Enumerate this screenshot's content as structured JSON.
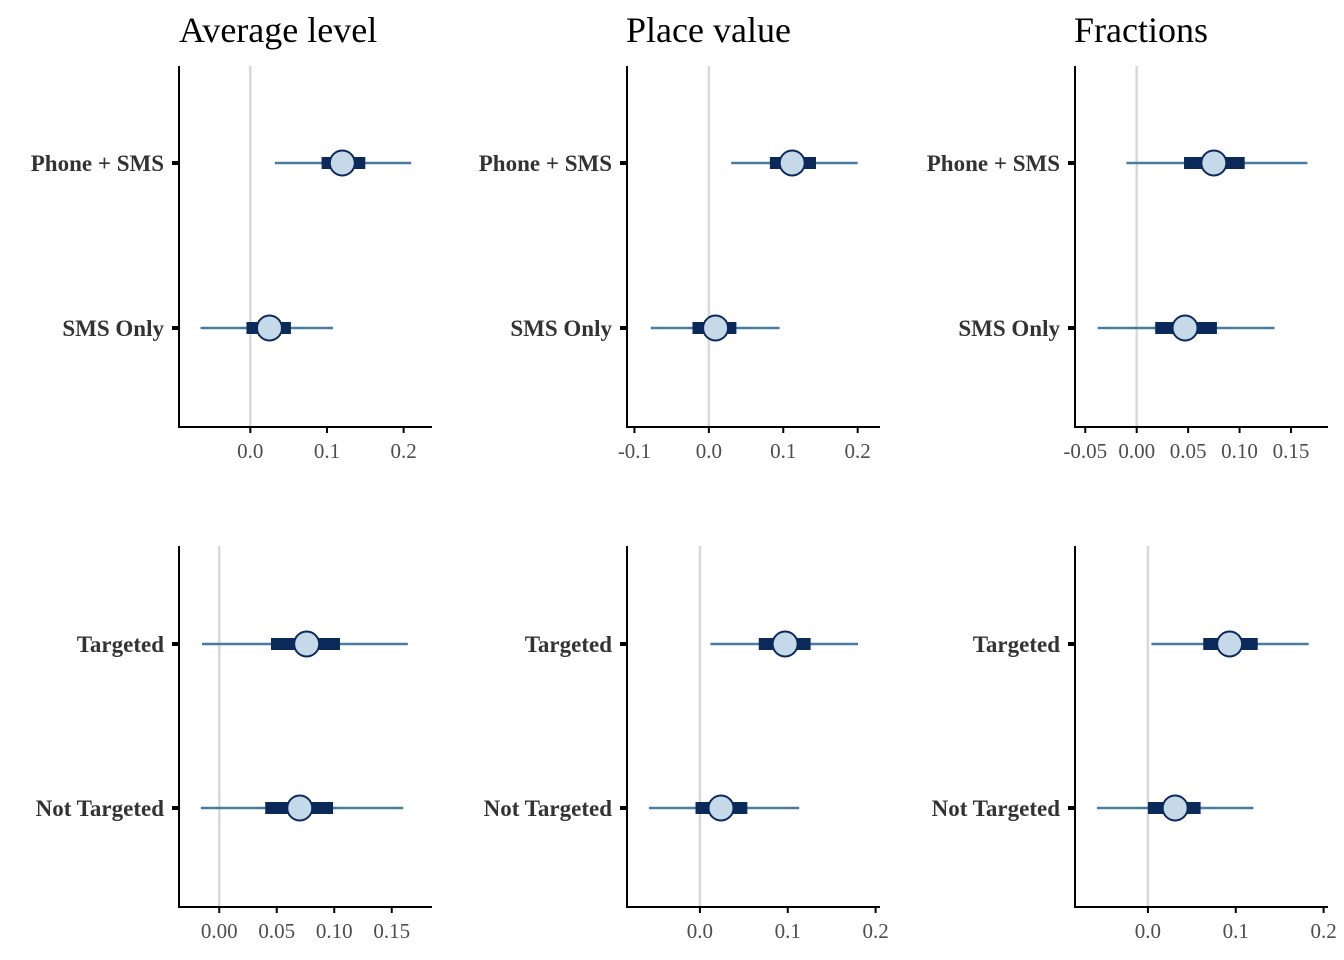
{
  "chart_data": [
    {
      "type": "coefficient_plot",
      "title": "Average level",
      "xlim": [
        -0.093,
        0.237
      ],
      "x_ticks": [
        {
          "value": 0.0,
          "label": "0.0"
        },
        {
          "value": 0.1,
          "label": "0.1"
        },
        {
          "value": 0.2,
          "label": "0.2"
        }
      ],
      "reference_line": 0,
      "categories": [
        "Phone + SMS",
        "SMS Only"
      ],
      "estimates": [
        {
          "label": "Phone + SMS",
          "estimate": 0.12,
          "ci_inner": [
            0.093,
            0.15
          ],
          "ci_outer": [
            0.032,
            0.21
          ]
        },
        {
          "label": "SMS Only",
          "estimate": 0.025,
          "ci_inner": [
            -0.005,
            0.053
          ],
          "ci_outer": [
            -0.065,
            0.108
          ]
        }
      ]
    },
    {
      "type": "coefficient_plot",
      "title": "Place value",
      "xlim": [
        -0.11,
        0.23
      ],
      "x_ticks": [
        {
          "value": -0.1,
          "label": "-0.1"
        },
        {
          "value": 0.0,
          "label": "0.0"
        },
        {
          "value": 0.1,
          "label": "0.1"
        },
        {
          "value": 0.2,
          "label": "0.2"
        }
      ],
      "reference_line": 0,
      "categories": [
        "Phone + SMS",
        "SMS Only"
      ],
      "estimates": [
        {
          "label": "Phone + SMS",
          "estimate": 0.112,
          "ci_inner": [
            0.082,
            0.144
          ],
          "ci_outer": [
            0.03,
            0.2
          ]
        },
        {
          "label": "SMS Only",
          "estimate": 0.009,
          "ci_inner": [
            -0.022,
            0.037
          ],
          "ci_outer": [
            -0.078,
            0.095
          ]
        }
      ]
    },
    {
      "type": "coefficient_plot",
      "title": "Fractions",
      "xlim": [
        -0.06,
        0.186
      ],
      "x_ticks": [
        {
          "value": -0.05,
          "label": "-0.05"
        },
        {
          "value": 0.0,
          "label": "0.00"
        },
        {
          "value": 0.05,
          "label": "0.05"
        },
        {
          "value": 0.1,
          "label": "0.10"
        },
        {
          "value": 0.15,
          "label": "0.15"
        }
      ],
      "reference_line": 0,
      "categories": [
        "Phone + SMS",
        "SMS Only"
      ],
      "estimates": [
        {
          "label": "Phone + SMS",
          "estimate": 0.075,
          "ci_inner": [
            0.046,
            0.105
          ],
          "ci_outer": [
            -0.01,
            0.166
          ]
        },
        {
          "label": "SMS Only",
          "estimate": 0.047,
          "ci_inner": [
            0.018,
            0.078
          ],
          "ci_outer": [
            -0.038,
            0.134
          ]
        }
      ]
    },
    {
      "type": "coefficient_plot",
      "title": "",
      "xlim": [
        -0.035,
        0.185
      ],
      "x_ticks": [
        {
          "value": 0.0,
          "label": "0.00"
        },
        {
          "value": 0.05,
          "label": "0.05"
        },
        {
          "value": 0.1,
          "label": "0.10"
        },
        {
          "value": 0.15,
          "label": "0.15"
        }
      ],
      "reference_line": 0,
      "categories": [
        "Targeted",
        "Not Targeted"
      ],
      "estimates": [
        {
          "label": "Targeted",
          "estimate": 0.076,
          "ci_inner": [
            0.045,
            0.105
          ],
          "ci_outer": [
            -0.015,
            0.164
          ]
        },
        {
          "label": "Not Targeted",
          "estimate": 0.07,
          "ci_inner": [
            0.04,
            0.099
          ],
          "ci_outer": [
            -0.016,
            0.16
          ]
        }
      ]
    },
    {
      "type": "coefficient_plot",
      "title": "",
      "xlim": [
        -0.083,
        0.205
      ],
      "x_ticks": [
        {
          "value": 0.0,
          "label": "0.0"
        },
        {
          "value": 0.1,
          "label": "0.1"
        },
        {
          "value": 0.2,
          "label": "0.2"
        }
      ],
      "reference_line": 0,
      "categories": [
        "Targeted",
        "Not Targeted"
      ],
      "estimates": [
        {
          "label": "Targeted",
          "estimate": 0.097,
          "ci_inner": [
            0.067,
            0.126
          ],
          "ci_outer": [
            0.012,
            0.18
          ]
        },
        {
          "label": "Not Targeted",
          "estimate": 0.024,
          "ci_inner": [
            -0.005,
            0.054
          ],
          "ci_outer": [
            -0.058,
            0.113
          ]
        }
      ]
    },
    {
      "type": "coefficient_plot",
      "title": "",
      "xlim": [
        -0.083,
        0.205
      ],
      "x_ticks": [
        {
          "value": 0.0,
          "label": "0.0"
        },
        {
          "value": 0.1,
          "label": "0.1"
        },
        {
          "value": 0.2,
          "label": "0.2"
        }
      ],
      "reference_line": 0,
      "categories": [
        "Targeted",
        "Not Targeted"
      ],
      "estimates": [
        {
          "label": "Targeted",
          "estimate": 0.093,
          "ci_inner": [
            0.063,
            0.125
          ],
          "ci_outer": [
            0.004,
            0.183
          ]
        },
        {
          "label": "Not Targeted",
          "estimate": 0.031,
          "ci_inner": [
            0.0,
            0.06
          ],
          "ci_outer": [
            -0.058,
            0.12
          ]
        }
      ]
    }
  ],
  "colors": {
    "outer_interval": "#4a7ba0",
    "inner_interval": "#0b2a5a",
    "point_fill": "#c6d9e8",
    "point_stroke": "#0b2a5a",
    "reference_line": "#d9d9d9",
    "axis": "#000000"
  }
}
